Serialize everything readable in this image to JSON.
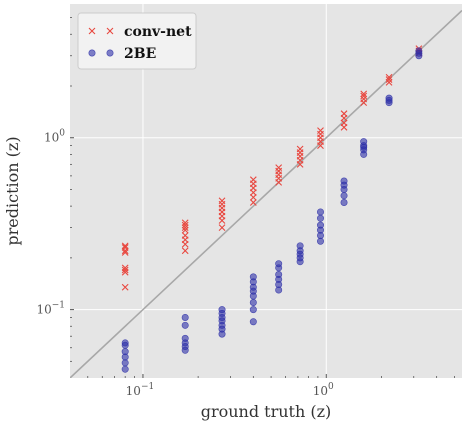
{
  "chart_data": {
    "type": "scatter",
    "xlabel": "ground truth (z)",
    "ylabel": "prediction (z)",
    "x_scale": "log",
    "y_scale": "log",
    "xlim": [
      0.04,
      5.5
    ],
    "ylim": [
      0.04,
      6.0
    ],
    "grid": true,
    "legend_position": "top-left",
    "reference_line": "y = x",
    "x_ticks": [
      {
        "value": 0.1,
        "base": "10",
        "exp": "−1"
      },
      {
        "value": 1,
        "base": "10",
        "exp": "0"
      }
    ],
    "y_ticks": [
      {
        "value": 0.1,
        "base": "10",
        "exp": "−1"
      },
      {
        "value": 1,
        "base": "10",
        "exp": "0"
      }
    ],
    "colors": {
      "background": "#e5e5e5",
      "grid": "#ffffff",
      "reference_line": "#a8a8a8",
      "conv_net": "#e8473f",
      "two_be": "#2d2fa8"
    },
    "series": [
      {
        "name": "conv-net",
        "marker": "x",
        "points": [
          [
            0.08,
            0.135
          ],
          [
            0.08,
            0.165
          ],
          [
            0.08,
            0.17
          ],
          [
            0.08,
            0.175
          ],
          [
            0.08,
            0.215
          ],
          [
            0.08,
            0.22
          ],
          [
            0.08,
            0.23
          ],
          [
            0.08,
            0.235
          ],
          [
            0.17,
            0.22
          ],
          [
            0.17,
            0.24
          ],
          [
            0.17,
            0.255
          ],
          [
            0.17,
            0.27
          ],
          [
            0.17,
            0.29
          ],
          [
            0.17,
            0.3
          ],
          [
            0.17,
            0.31
          ],
          [
            0.17,
            0.32
          ],
          [
            0.27,
            0.3
          ],
          [
            0.27,
            0.33
          ],
          [
            0.27,
            0.35
          ],
          [
            0.27,
            0.37
          ],
          [
            0.27,
            0.39
          ],
          [
            0.27,
            0.41
          ],
          [
            0.27,
            0.43
          ],
          [
            0.4,
            0.42
          ],
          [
            0.4,
            0.45
          ],
          [
            0.4,
            0.48
          ],
          [
            0.4,
            0.51
          ],
          [
            0.4,
            0.54
          ],
          [
            0.4,
            0.57
          ],
          [
            0.55,
            0.55
          ],
          [
            0.55,
            0.58
          ],
          [
            0.55,
            0.61
          ],
          [
            0.55,
            0.64
          ],
          [
            0.55,
            0.67
          ],
          [
            0.72,
            0.7
          ],
          [
            0.72,
            0.74
          ],
          [
            0.72,
            0.78
          ],
          [
            0.72,
            0.82
          ],
          [
            0.72,
            0.86
          ],
          [
            0.93,
            0.9
          ],
          [
            0.93,
            0.95
          ],
          [
            0.93,
            1.0
          ],
          [
            0.93,
            1.05
          ],
          [
            0.93,
            1.1
          ],
          [
            1.25,
            1.15
          ],
          [
            1.25,
            1.22
          ],
          [
            1.25,
            1.3
          ],
          [
            1.25,
            1.38
          ],
          [
            1.6,
            1.6
          ],
          [
            1.6,
            1.68
          ],
          [
            1.6,
            1.75
          ],
          [
            1.6,
            1.8
          ],
          [
            2.2,
            2.1
          ],
          [
            2.2,
            2.18
          ],
          [
            2.2,
            2.25
          ],
          [
            3.2,
            3.1
          ],
          [
            3.2,
            3.2
          ],
          [
            3.2,
            3.3
          ]
        ]
      },
      {
        "name": "2BE",
        "marker": "o",
        "points": [
          [
            0.08,
            0.045
          ],
          [
            0.08,
            0.049
          ],
          [
            0.08,
            0.053
          ],
          [
            0.08,
            0.057
          ],
          [
            0.08,
            0.062
          ],
          [
            0.08,
            0.064
          ],
          [
            0.17,
            0.058
          ],
          [
            0.17,
            0.061
          ],
          [
            0.17,
            0.064
          ],
          [
            0.17,
            0.068
          ],
          [
            0.17,
            0.081
          ],
          [
            0.17,
            0.09
          ],
          [
            0.27,
            0.072
          ],
          [
            0.27,
            0.077
          ],
          [
            0.27,
            0.081
          ],
          [
            0.27,
            0.086
          ],
          [
            0.27,
            0.09
          ],
          [
            0.27,
            0.095
          ],
          [
            0.27,
            0.1
          ],
          [
            0.4,
            0.085
          ],
          [
            0.4,
            0.1
          ],
          [
            0.4,
            0.11
          ],
          [
            0.4,
            0.12
          ],
          [
            0.4,
            0.128
          ],
          [
            0.4,
            0.135
          ],
          [
            0.4,
            0.145
          ],
          [
            0.4,
            0.155
          ],
          [
            0.55,
            0.13
          ],
          [
            0.55,
            0.14
          ],
          [
            0.55,
            0.15
          ],
          [
            0.55,
            0.16
          ],
          [
            0.55,
            0.175
          ],
          [
            0.55,
            0.185
          ],
          [
            0.72,
            0.19
          ],
          [
            0.72,
            0.2
          ],
          [
            0.72,
            0.21
          ],
          [
            0.72,
            0.22
          ],
          [
            0.72,
            0.235
          ],
          [
            0.93,
            0.25
          ],
          [
            0.93,
            0.27
          ],
          [
            0.93,
            0.29
          ],
          [
            0.93,
            0.31
          ],
          [
            0.93,
            0.34
          ],
          [
            0.93,
            0.37
          ],
          [
            1.25,
            0.42
          ],
          [
            1.25,
            0.46
          ],
          [
            1.25,
            0.5
          ],
          [
            1.25,
            0.53
          ],
          [
            1.25,
            0.56
          ],
          [
            1.6,
            0.8
          ],
          [
            1.6,
            0.85
          ],
          [
            1.6,
            0.88
          ],
          [
            1.6,
            0.9
          ],
          [
            1.6,
            0.95
          ],
          [
            2.2,
            1.6
          ],
          [
            2.2,
            1.65
          ],
          [
            2.2,
            1.7
          ],
          [
            3.2,
            3.0
          ],
          [
            3.2,
            3.1
          ],
          [
            3.2,
            3.2
          ]
        ]
      }
    ]
  }
}
